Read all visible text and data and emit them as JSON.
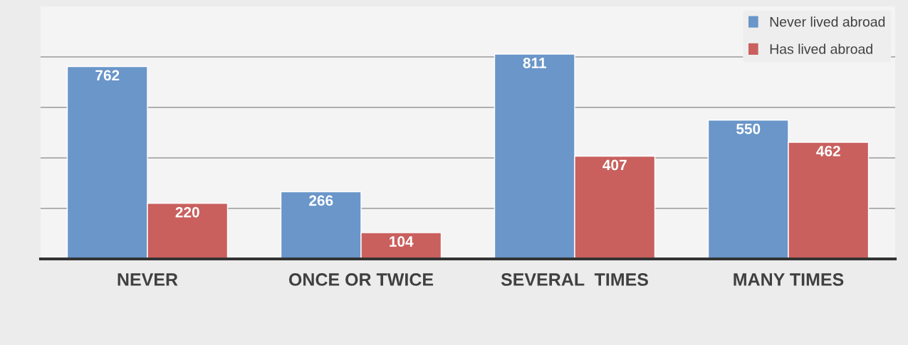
{
  "chart_data": {
    "type": "bar",
    "categories": [
      "NEVER",
      "ONCE OR TWICE",
      "SEVERAL  TIMES",
      "MANY TIMES"
    ],
    "series": [
      {
        "name": "Never lived abroad",
        "color": "#6a96c9",
        "values": [
          762,
          266,
          811,
          550
        ]
      },
      {
        "name": "Has lived abroad",
        "color": "#c9605e",
        "values": [
          220,
          104,
          407,
          462
        ]
      }
    ],
    "ylim": [
      0,
      1000
    ],
    "yticks": [
      {
        "value": 200,
        "label": null
      },
      {
        "value": 400,
        "label": null
      },
      {
        "value": 600,
        "label": null
      },
      {
        "value": 800,
        "label": null
      }
    ],
    "tick_labels": "x",
    "grid": "y",
    "legend": "top right",
    "data_labels": true
  }
}
